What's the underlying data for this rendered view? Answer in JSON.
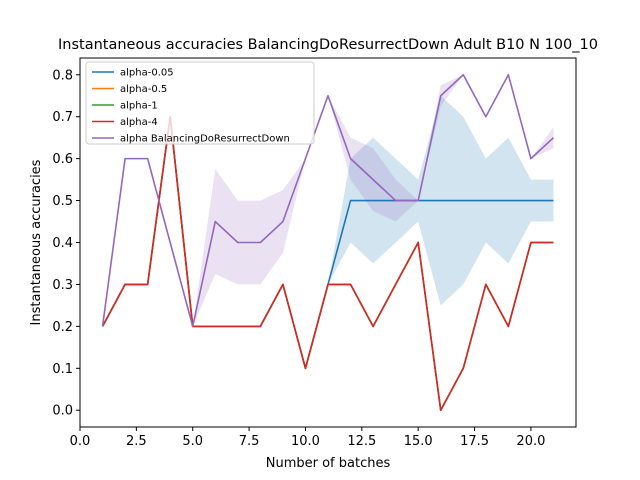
{
  "chart_data": {
    "type": "line",
    "title": "Instantaneous accuracies BalancingDoResurrectDown Adult B10 N 100_10",
    "xlabel": "Number of batches",
    "ylabel": "Instantaneous accuracies",
    "xlim": [
      0,
      22
    ],
    "ylim": [
      -0.04,
      0.84
    ],
    "xticks": [
      0.0,
      2.5,
      5.0,
      7.5,
      10.0,
      12.5,
      15.0,
      17.5,
      20.0
    ],
    "xtick_labels": [
      "0.0",
      "2.5",
      "5.0",
      "7.5",
      "10.0",
      "12.5",
      "15.0",
      "17.5",
      "20.0"
    ],
    "yticks": [
      0.0,
      0.1,
      0.2,
      0.3,
      0.4,
      0.5,
      0.6,
      0.7,
      0.8
    ],
    "ytick_labels": [
      "0.0",
      "0.1",
      "0.2",
      "0.3",
      "0.4",
      "0.5",
      "0.6",
      "0.7",
      "0.8"
    ],
    "legend_position": "top-left",
    "grid": false,
    "x": [
      1,
      2,
      3,
      4,
      5,
      6,
      7,
      8,
      9,
      10,
      11,
      12,
      13,
      14,
      15,
      16,
      17,
      18,
      19,
      20,
      21
    ],
    "series": [
      {
        "name": "alpha-0.05",
        "color": "#1f77b4",
        "values": [
          0.2,
          0.3,
          0.3,
          0.7,
          0.2,
          0.2,
          0.2,
          0.2,
          0.3,
          0.1,
          0.3,
          0.5,
          0.5,
          0.5,
          0.5,
          0.5,
          0.5,
          0.5,
          0.5,
          0.5,
          0.5
        ],
        "band_lower": [
          0.2,
          0.3,
          0.3,
          0.7,
          0.2,
          0.2,
          0.2,
          0.2,
          0.3,
          0.1,
          0.3,
          0.4,
          0.35,
          0.4,
          0.45,
          0.25,
          0.3,
          0.4,
          0.35,
          0.45,
          0.45
        ],
        "band_upper": [
          0.2,
          0.3,
          0.3,
          0.7,
          0.2,
          0.2,
          0.2,
          0.2,
          0.3,
          0.1,
          0.3,
          0.6,
          0.65,
          0.6,
          0.55,
          0.75,
          0.7,
          0.6,
          0.65,
          0.55,
          0.55
        ]
      },
      {
        "name": "alpha-0.5",
        "color": "#ff7f0e",
        "values": [
          0.2,
          0.3,
          0.3,
          0.7,
          0.2,
          0.2,
          0.2,
          0.2,
          0.3,
          0.1,
          0.3,
          0.3,
          0.2,
          0.3,
          0.4,
          0.0,
          0.1,
          0.3,
          0.2,
          0.4,
          0.4
        ]
      },
      {
        "name": "alpha-1",
        "color": "#2ca02c",
        "values": [
          0.2,
          0.3,
          0.3,
          0.7,
          0.2,
          0.2,
          0.2,
          0.2,
          0.3,
          0.1,
          0.3,
          0.3,
          0.2,
          0.3,
          0.4,
          0.0,
          0.1,
          0.3,
          0.2,
          0.4,
          0.4
        ]
      },
      {
        "name": "alpha-4",
        "color": "#d62728",
        "values": [
          0.2,
          0.3,
          0.3,
          0.7,
          0.2,
          0.2,
          0.2,
          0.2,
          0.3,
          0.1,
          0.3,
          0.3,
          0.2,
          0.3,
          0.4,
          0.0,
          0.1,
          0.3,
          0.2,
          0.4,
          0.4
        ]
      },
      {
        "name": "alpha BalancingDoResurrectDown",
        "color": "#9467bd",
        "values": [
          0.2,
          0.6,
          0.6,
          0.4,
          0.2,
          0.45,
          0.4,
          0.4,
          0.45,
          0.6,
          0.75,
          0.6,
          0.55,
          0.5,
          0.5,
          0.75,
          0.8,
          0.7,
          0.8,
          0.6,
          0.65
        ],
        "band_lower": [
          0.2,
          0.6,
          0.6,
          0.4,
          0.2,
          0.325,
          0.3,
          0.3,
          0.375,
          0.6,
          0.75,
          0.55,
          0.475,
          0.45,
          0.5,
          0.725,
          0.8,
          0.7,
          0.8,
          0.6,
          0.625
        ],
        "band_upper": [
          0.2,
          0.6,
          0.6,
          0.4,
          0.2,
          0.575,
          0.5,
          0.5,
          0.525,
          0.6,
          0.75,
          0.65,
          0.625,
          0.55,
          0.5,
          0.775,
          0.8,
          0.7,
          0.8,
          0.6,
          0.675
        ]
      }
    ]
  }
}
